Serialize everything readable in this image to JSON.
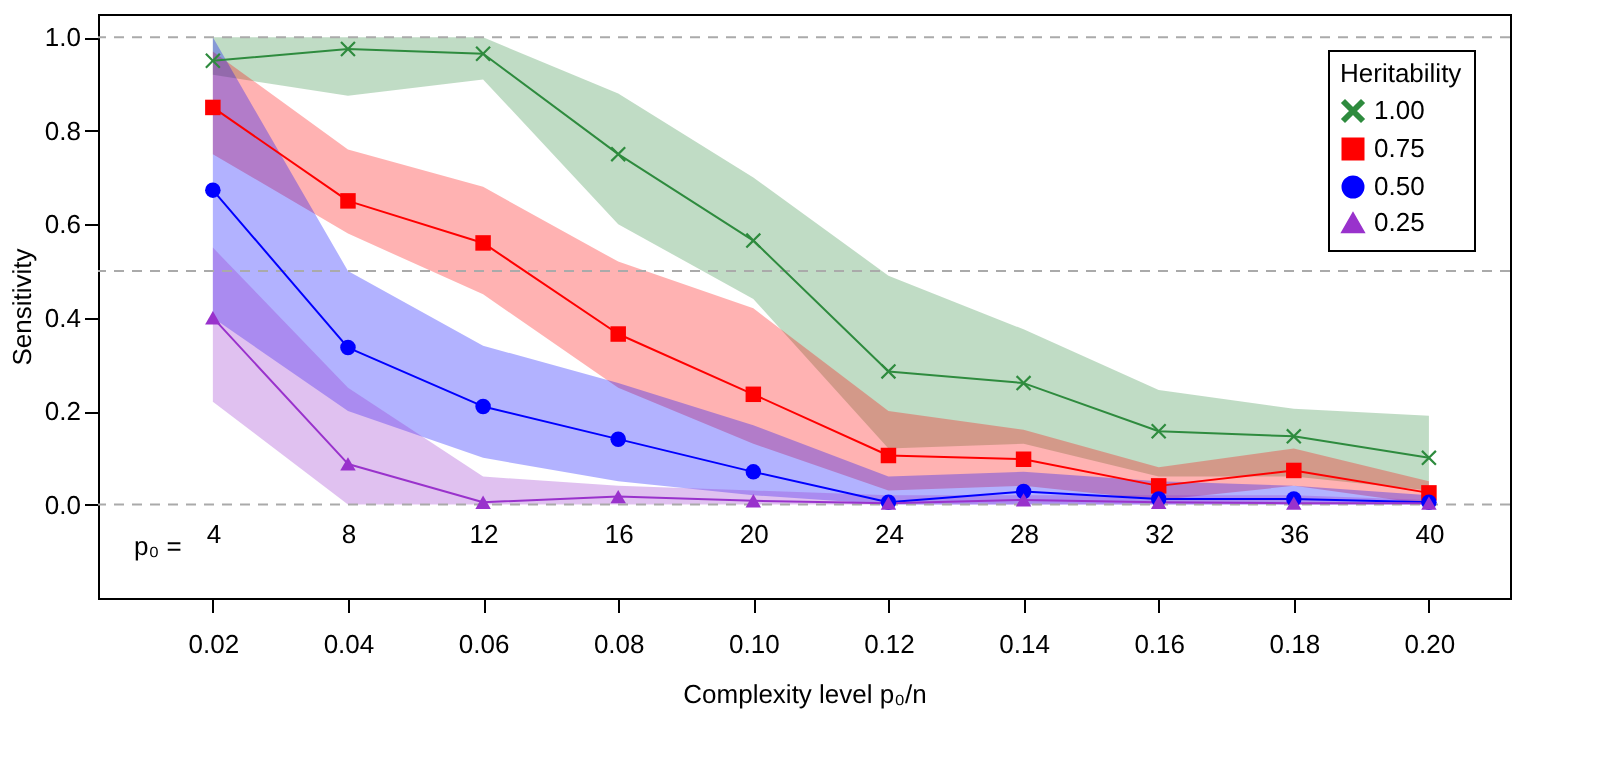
{
  "chart_data": {
    "type": "line",
    "xlabel": "Complexity level p₀/n",
    "ylabel": "Sensitivity",
    "legend_title": "Heritability",
    "legend": "top right",
    "x": [
      0.02,
      0.04,
      0.06,
      0.08,
      0.1,
      0.12,
      0.14,
      0.16,
      0.18,
      0.2
    ],
    "xlim": [
      0.003,
      0.212
    ],
    "ylim": [
      -0.2,
      1.05
    ],
    "xticks": [
      0.02,
      0.04,
      0.06,
      0.08,
      {
        "value": 0.1,
        "label": "0.10"
      },
      0.12,
      0.14,
      0.16,
      0.18,
      {
        "value": 0.2,
        "label": "0.20"
      }
    ],
    "yticks": [
      {
        "value": 0,
        "label": "0.0"
      },
      0.2,
      0.4,
      0.6,
      0.8,
      {
        "value": 1,
        "label": "1.0"
      }
    ],
    "ref_lines": [
      {
        "axis": "y",
        "value": 0,
        "color": "#aaaaaa",
        "line_style": "dashed"
      },
      {
        "axis": "y",
        "value": 0.5,
        "color": "#aaaaaa",
        "line_style": "dashed"
      },
      {
        "axis": "y",
        "value": 1,
        "color": "#aaaaaa",
        "line_style": "dashed"
      }
    ],
    "series": [
      {
        "name": "1.00",
        "color": "#2e8b3e",
        "marker": "cross",
        "values": [
          0.95,
          0.975,
          0.965,
          0.75,
          0.565,
          0.285,
          0.26,
          0.157,
          0.146,
          0.1
        ],
        "lower": [
          0.92,
          0.875,
          0.91,
          0.6,
          0.44,
          0.12,
          0.13,
          0.06,
          0.06,
          0.03
        ],
        "upper": [
          1.0,
          1.0,
          1.0,
          0.88,
          0.7,
          0.49,
          0.375,
          0.245,
          0.205,
          0.19
        ]
      },
      {
        "name": "0.75",
        "color": "#ff0000",
        "marker": "square",
        "values": [
          0.85,
          0.65,
          0.56,
          0.365,
          0.236,
          0.105,
          0.097,
          0.04,
          0.073,
          0.025
        ],
        "lower": [
          0.75,
          0.58,
          0.45,
          0.25,
          0.13,
          0.03,
          0.04,
          0.01,
          0.04,
          0.0
        ],
        "upper": [
          0.97,
          0.76,
          0.68,
          0.52,
          0.42,
          0.2,
          0.16,
          0.08,
          0.12,
          0.05
        ]
      },
      {
        "name": "0.50",
        "color": "#0000ff",
        "marker": "circle",
        "values": [
          0.673,
          0.336,
          0.21,
          0.14,
          0.07,
          0.005,
          0.028,
          0.012,
          0.012,
          0.005
        ],
        "lower": [
          0.4,
          0.2,
          0.1,
          0.05,
          0.02,
          0.0,
          0.0,
          0.0,
          0.0,
          0.0
        ],
        "upper": [
          1.0,
          0.5,
          0.34,
          0.26,
          0.17,
          0.06,
          0.07,
          0.05,
          0.04,
          0.02
        ]
      },
      {
        "name": "0.25",
        "color": "#9932cc",
        "marker": "triangle",
        "values": [
          0.4,
          0.087,
          0.005,
          0.017,
          0.008,
          0.003,
          0.01,
          0.005,
          0.003,
          0.003
        ],
        "lower": [
          0.22,
          0.0,
          0.0,
          0.0,
          0.0,
          0.0,
          0.0,
          0.0,
          0.0,
          0.0
        ],
        "upper": [
          0.55,
          0.25,
          0.06,
          0.04,
          0.03,
          0.02,
          0.02,
          0.02,
          0.02,
          0.01
        ]
      }
    ],
    "x2label": "p₀ =",
    "x2lim": [
      0.6,
      42.4
    ],
    "x2ticks": [
      4,
      8,
      12,
      16,
      20,
      24,
      28,
      32,
      36,
      40
    ]
  }
}
